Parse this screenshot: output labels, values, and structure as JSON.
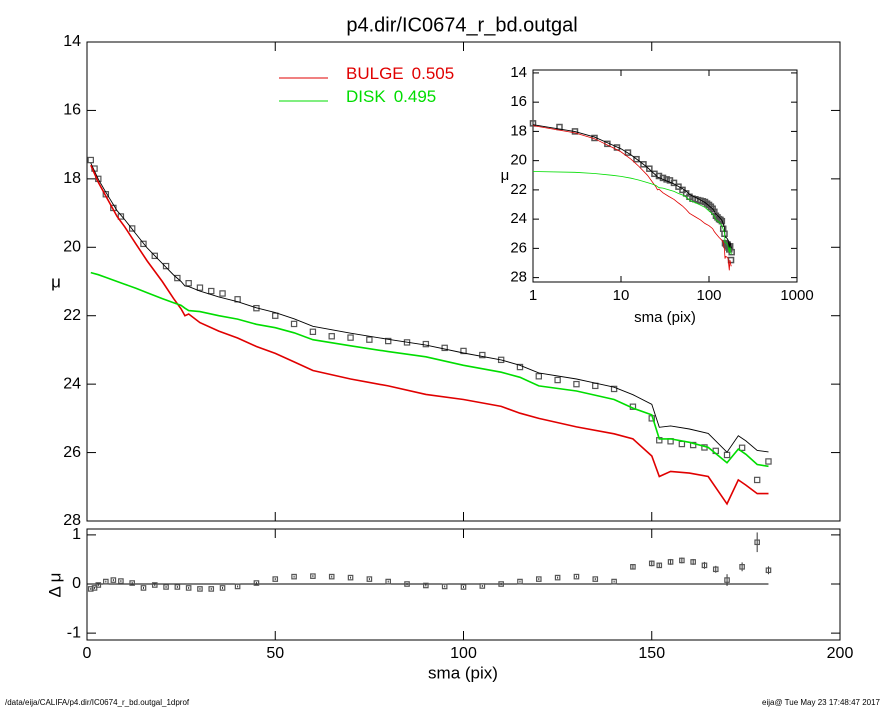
{
  "chart_data": [
    {
      "type": "line",
      "title": "p4.dir/IC0674_r_bd.outgal",
      "y_label": "μ",
      "xlim": [
        0,
        200
      ],
      "ylim": [
        28,
        14
      ],
      "yticks": [
        14,
        16,
        18,
        20,
        22,
        24,
        26,
        28
      ],
      "x": [
        1,
        3,
        5,
        8,
        10,
        13,
        16,
        20,
        23,
        25,
        26,
        27,
        30,
        35,
        40,
        45,
        50,
        55,
        60,
        70,
        80,
        90,
        100,
        110,
        115,
        120,
        130,
        140,
        145,
        150,
        152,
        155,
        160,
        165,
        170,
        173,
        175,
        178,
        181
      ],
      "series": [
        {
          "name": "BULGE",
          "fraction": 0.505,
          "color": "#e00000",
          "values": [
            17.6,
            18.1,
            18.5,
            19.1,
            19.4,
            19.9,
            20.4,
            21.0,
            21.5,
            21.8,
            22.0,
            21.95,
            22.2,
            22.45,
            22.65,
            22.9,
            23.1,
            23.35,
            23.6,
            23.85,
            24.05,
            24.3,
            24.45,
            24.65,
            24.85,
            25.0,
            25.25,
            25.45,
            25.6,
            26.1,
            26.7,
            26.55,
            26.6,
            26.7,
            27.5,
            26.8,
            26.95,
            27.2,
            27.2
          ]
        },
        {
          "name": "DISK",
          "fraction": 0.495,
          "color": "#00dd00",
          "values": [
            20.74,
            20.8,
            20.88,
            21.0,
            21.08,
            21.2,
            21.33,
            21.5,
            21.62,
            21.7,
            21.78,
            21.85,
            21.88,
            22.0,
            22.1,
            22.25,
            22.35,
            22.5,
            22.7,
            22.88,
            23.05,
            23.2,
            23.45,
            23.65,
            23.8,
            24.05,
            24.2,
            24.45,
            24.7,
            24.9,
            25.6,
            25.6,
            25.7,
            25.85,
            26.3,
            25.9,
            26.05,
            26.35,
            26.4
          ]
        }
      ],
      "model_total": {
        "color": "#000000",
        "values": [
          17.54,
          18.01,
          18.39,
          18.93,
          19.19,
          19.61,
          20.02,
          20.47,
          20.81,
          21.0,
          21.13,
          21.15,
          21.28,
          21.45,
          21.59,
          21.77,
          21.91,
          22.09,
          22.31,
          22.51,
          22.69,
          22.86,
          23.09,
          23.29,
          23.45,
          23.67,
          23.85,
          24.09,
          24.31,
          24.59,
          25.26,
          25.22,
          25.31,
          25.44,
          25.99,
          25.51,
          25.66,
          25.94,
          25.98
        ]
      },
      "observed": {
        "color": "#555555",
        "x": [
          1,
          2,
          3,
          5,
          7,
          9,
          12,
          15,
          18,
          21,
          24,
          27,
          30,
          33,
          36,
          40,
          45,
          50,
          55,
          60,
          65,
          70,
          75,
          80,
          85,
          90,
          95,
          100,
          105,
          110,
          115,
          120,
          125,
          130,
          135,
          140,
          145,
          150,
          152,
          155,
          158,
          161,
          164,
          167,
          170,
          174,
          178,
          181
        ],
        "values": [
          17.45,
          17.7,
          18.0,
          18.45,
          18.85,
          19.1,
          19.45,
          19.9,
          20.25,
          20.55,
          20.9,
          21.05,
          21.18,
          21.28,
          21.35,
          21.52,
          21.78,
          22.0,
          22.24,
          22.47,
          22.6,
          22.64,
          22.7,
          22.74,
          22.78,
          22.83,
          22.94,
          23.03,
          23.15,
          23.29,
          23.5,
          23.77,
          23.88,
          24.0,
          24.05,
          24.14,
          24.66,
          25.0,
          25.64,
          25.67,
          25.75,
          25.78,
          25.85,
          25.95,
          26.07,
          25.86,
          26.8,
          26.26
        ]
      }
    },
    {
      "type": "line",
      "x_scale": "log",
      "x_label": "sma (pix)",
      "y_label": "μ",
      "xlim": [
        1,
        1000
      ],
      "ylim": [
        28.3,
        13.8
      ],
      "xticks": [
        1,
        10,
        100,
        1000
      ],
      "yticks": [
        14,
        16,
        18,
        20,
        22,
        24,
        26,
        28
      ]
    },
    {
      "type": "scatter",
      "x_label": "sma (pix)",
      "y_label": "Δ μ",
      "xlim": [
        0,
        200
      ],
      "ylim": [
        -1.14,
        1.12
      ],
      "xticks": [
        0,
        50,
        100,
        150,
        200
      ],
      "yticks": [
        -1,
        0,
        1
      ],
      "x": [
        1,
        2,
        3,
        5,
        7,
        9,
        12,
        15,
        18,
        21,
        24,
        27,
        30,
        33,
        36,
        40,
        45,
        50,
        55,
        60,
        65,
        70,
        75,
        80,
        85,
        90,
        95,
        100,
        105,
        110,
        115,
        120,
        125,
        130,
        135,
        140,
        145,
        150,
        152,
        155,
        158,
        161,
        164,
        167,
        170,
        174,
        178,
        181
      ],
      "values": [
        -0.1,
        -0.08,
        -0.02,
        0.05,
        0.08,
        0.06,
        0.02,
        -0.08,
        -0.02,
        -0.06,
        -0.06,
        -0.08,
        -0.1,
        -0.1,
        -0.08,
        -0.05,
        0.02,
        0.1,
        0.15,
        0.16,
        0.15,
        0.13,
        0.1,
        0.05,
        0.0,
        -0.03,
        -0.05,
        -0.06,
        -0.04,
        0.0,
        0.05,
        0.1,
        0.13,
        0.15,
        0.1,
        0.05,
        0.35,
        0.42,
        0.38,
        0.45,
        0.48,
        0.45,
        0.38,
        0.3,
        0.08,
        0.35,
        0.85,
        0.28
      ],
      "errors": [
        0.02,
        0.02,
        0.02,
        0.02,
        0.02,
        0.02,
        0.02,
        0.02,
        0.02,
        0.02,
        0.02,
        0.02,
        0.02,
        0.02,
        0.02,
        0.02,
        0.02,
        0.02,
        0.02,
        0.02,
        0.02,
        0.02,
        0.02,
        0.02,
        0.02,
        0.02,
        0.02,
        0.02,
        0.02,
        0.02,
        0.02,
        0.02,
        0.02,
        0.02,
        0.02,
        0.02,
        0.05,
        0.06,
        0.05,
        0.06,
        0.06,
        0.06,
        0.07,
        0.07,
        0.12,
        0.09,
        0.2,
        0.08
      ],
      "color": "#555555"
    }
  ],
  "footer": {
    "path": "/data/eija/CALIFA/p4.dir/IC0674_r_bd.outgal_1dprof",
    "stamp": "eija@  Tue May 23 17:48:47 2017"
  }
}
